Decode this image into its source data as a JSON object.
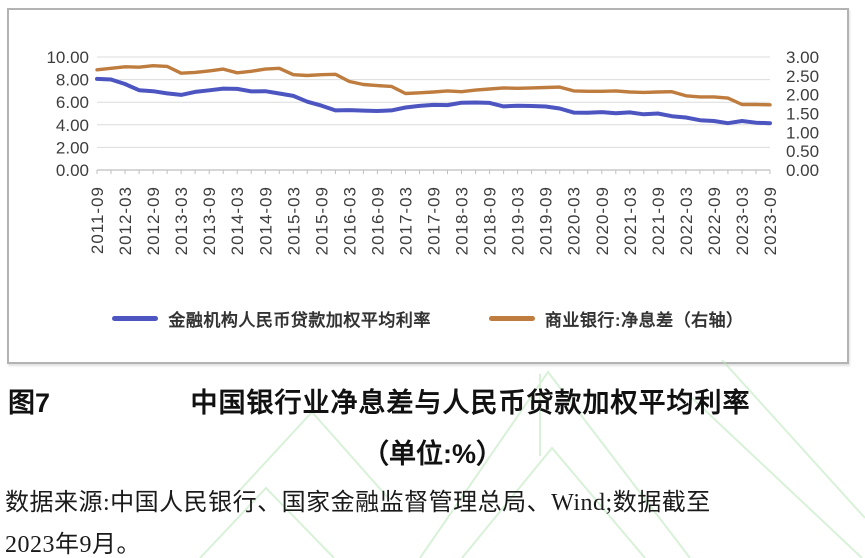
{
  "chart_data": {
    "type": "line",
    "title": "中国银行业净息差与人民币贷款加权平均利率",
    "unit_note": "（单位:%）",
    "grid": true,
    "legend_position": "bottom",
    "label_every": 2,
    "categories": [
      "2011-09",
      "2011-12",
      "2012-03",
      "2012-06",
      "2012-09",
      "2012-12",
      "2013-03",
      "2013-06",
      "2013-09",
      "2013-12",
      "2014-03",
      "2014-06",
      "2014-09",
      "2014-12",
      "2015-03",
      "2015-06",
      "2015-09",
      "2015-12",
      "2016-03",
      "2016-06",
      "2016-09",
      "2016-12",
      "2017-03",
      "2017-06",
      "2017-09",
      "2017-12",
      "2018-03",
      "2018-06",
      "2018-09",
      "2018-12",
      "2019-03",
      "2019-06",
      "2019-09",
      "2019-12",
      "2020-03",
      "2020-06",
      "2020-09",
      "2020-12",
      "2021-03",
      "2021-06",
      "2021-09",
      "2021-12",
      "2022-03",
      "2022-06",
      "2022-09",
      "2022-12",
      "2023-03",
      "2023-06",
      "2023-09"
    ],
    "left_axis": {
      "min": 0,
      "max": 10,
      "step": 2,
      "tick_labels": [
        "0.00",
        "2.00",
        "4.00",
        "6.00",
        "8.00",
        "10.00"
      ]
    },
    "right_axis": {
      "min": 0,
      "max": 3,
      "step": 0.5,
      "tick_labels": [
        "0.00",
        "0.50",
        "1.00",
        "1.50",
        "2.00",
        "2.50",
        "3.00"
      ]
    },
    "series": [
      {
        "name": "金融机构人民币贷款加权平均利率",
        "axis": "left",
        "color": "#4D55C0",
        "width": 4,
        "values": [
          8.06,
          8.01,
          7.61,
          7.06,
          6.97,
          6.78,
          6.65,
          6.91,
          7.05,
          7.2,
          7.18,
          6.96,
          6.97,
          6.77,
          6.56,
          6.04,
          5.7,
          5.27,
          5.3,
          5.26,
          5.22,
          5.27,
          5.53,
          5.67,
          5.76,
          5.74,
          5.96,
          5.97,
          5.94,
          5.63,
          5.69,
          5.66,
          5.62,
          5.44,
          5.08,
          5.06,
          5.12,
          5.03,
          5.1,
          4.93,
          5.0,
          4.76,
          4.65,
          4.41,
          4.34,
          4.14,
          4.34,
          4.19,
          4.14
        ]
      },
      {
        "name": "商业银行:净息差（右轴）",
        "axis": "right",
        "color": "#BE7C3F",
        "width": 3.4,
        "values": [
          2.66,
          2.7,
          2.74,
          2.73,
          2.77,
          2.75,
          2.57,
          2.59,
          2.63,
          2.68,
          2.58,
          2.62,
          2.68,
          2.7,
          2.53,
          2.51,
          2.53,
          2.54,
          2.35,
          2.27,
          2.24,
          2.22,
          2.03,
          2.05,
          2.07,
          2.1,
          2.08,
          2.12,
          2.15,
          2.18,
          2.17,
          2.18,
          2.19,
          2.2,
          2.1,
          2.09,
          2.09,
          2.1,
          2.07,
          2.06,
          2.07,
          2.08,
          1.97,
          1.94,
          1.94,
          1.91,
          1.74,
          1.74,
          1.73
        ]
      }
    ]
  },
  "caption": {
    "figure_label": "图7",
    "title": "中国银行业净息差与人民币贷款加权平均利率",
    "subtitle": "（单位:%）",
    "source_line1": "数据来源:中国人民银行、国家金融监督管理总局、Wind;数据截至",
    "source_line2": "2023年9月。"
  },
  "colors": {
    "loan_rate_line": "#4D55C0",
    "nim_line": "#BE7C3F",
    "gridline": "#dcdcdc",
    "axis": "#bfbfbf",
    "watermark_green": "#b9e6ba"
  }
}
